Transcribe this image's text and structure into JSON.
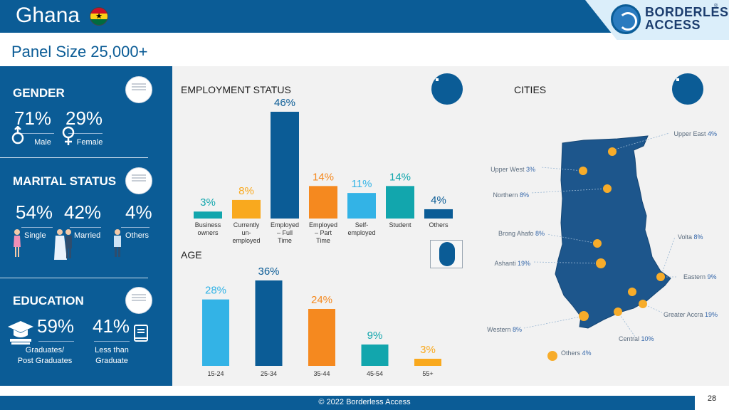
{
  "header": {
    "title": "Ghana",
    "logo_line1": "BORDERLESS",
    "logo_line2": "ACCESS",
    "logo_mark": "®"
  },
  "panel_size": "Panel Size 25,000+",
  "gender": {
    "heading": "GENDER",
    "items": [
      {
        "value": "71%",
        "label": "Male",
        "icon": "male-symbol-icon"
      },
      {
        "value": "29%",
        "label": "Female",
        "icon": "female-symbol-icon"
      }
    ]
  },
  "marital": {
    "heading": "MARITAL STATUS",
    "items": [
      {
        "value": "54%",
        "label": "Single",
        "icon": "woman-icon"
      },
      {
        "value": "42%",
        "label": "Married",
        "icon": "couple-icon"
      },
      {
        "value": "4%",
        "label": "Others",
        "icon": "man-icon"
      }
    ]
  },
  "education": {
    "heading": "EDUCATION",
    "items": [
      {
        "value": "59%",
        "label_line1": "Graduates/",
        "label_line2": "Post Graduates",
        "icon": "graduation-cap-icon"
      },
      {
        "value": "41%",
        "label_line1": "Less than",
        "label_line2": "Graduate",
        "icon": "book-icon"
      }
    ]
  },
  "employment_heading": "EMPLOYMENT STATUS",
  "age_heading": "AGE",
  "cities_heading": "CITIES",
  "colors": {
    "navy": "#0b5c96",
    "teal": "#12a6ad",
    "orange": "#f9a91e",
    "deep_orange": "#f5891f",
    "sky": "#33b3e6",
    "map": "#1d568c",
    "dot": "#f7ac2a"
  },
  "chart_data": [
    {
      "type": "bar",
      "title": "EMPLOYMENT STATUS",
      "categories": [
        [
          "Business",
          "owners"
        ],
        [
          "Currently",
          "un-",
          "employed"
        ],
        [
          "Employed",
          "– Full",
          "Time"
        ],
        [
          "Employed",
          "– Part",
          "Time"
        ],
        [
          "Self-",
          "employed"
        ],
        [
          "Student"
        ],
        [
          "Others"
        ]
      ],
      "values": [
        3,
        8,
        46,
        14,
        11,
        14,
        4
      ],
      "value_labels": [
        "3%",
        "8%",
        "46%",
        "14%",
        "11%",
        "14%",
        "4%"
      ],
      "bar_colors": [
        "#12a6ad",
        "#f9a91e",
        "#0b5c96",
        "#f5891f",
        "#33b3e6",
        "#12a6ad",
        "#0b5c96"
      ],
      "ylim": [
        0,
        46
      ]
    },
    {
      "type": "bar",
      "title": "AGE",
      "categories": [
        "15-24",
        "25-34",
        "35-44",
        "45-54",
        "55+"
      ],
      "values": [
        28,
        36,
        24,
        9,
        3
      ],
      "value_labels": [
        "28%",
        "36%",
        "24%",
        "9%",
        "3%"
      ],
      "bar_colors": [
        "#33b3e6",
        "#0b5c96",
        "#f5891f",
        "#12a6ad",
        "#f9a91e"
      ],
      "ylim": [
        0,
        36
      ]
    }
  ],
  "cities": [
    {
      "name": "Upper East",
      "pct": "4%"
    },
    {
      "name": "Upper West",
      "pct": "3%"
    },
    {
      "name": "Northern",
      "pct": "8%"
    },
    {
      "name": "Brong Ahafo",
      "pct": "8%"
    },
    {
      "name": "Volta",
      "pct": "8%"
    },
    {
      "name": "Ashanti",
      "pct": "19%"
    },
    {
      "name": "Eastern",
      "pct": "9%"
    },
    {
      "name": "Greater Accra",
      "pct": "19%"
    },
    {
      "name": "Western",
      "pct": "8%"
    },
    {
      "name": "Central",
      "pct": "10%"
    },
    {
      "name": "Others",
      "pct": "4%"
    }
  ],
  "footer": {
    "copyright": "© 2022 Borderless Access",
    "page": "28"
  }
}
